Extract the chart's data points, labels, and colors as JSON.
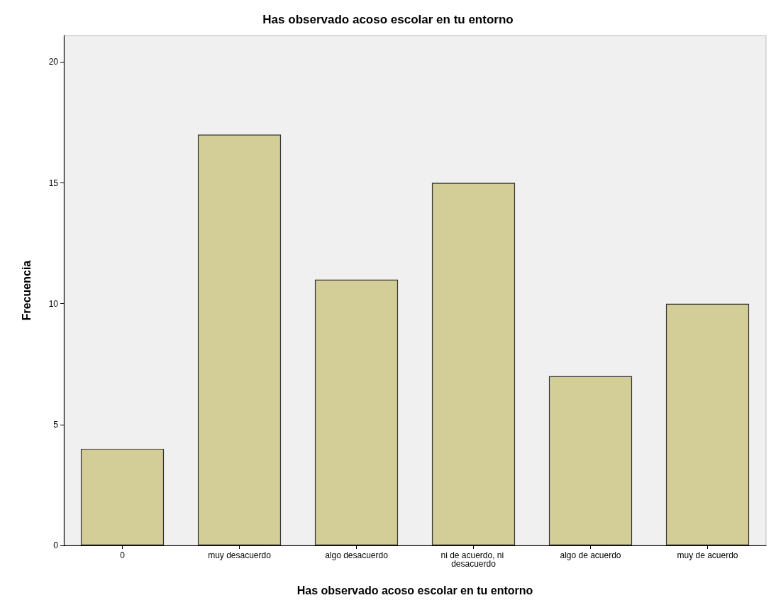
{
  "chart_data": {
    "type": "bar",
    "title": "Has observado acoso escolar en tu entorno",
    "xlabel": "Has observado acoso escolar en tu entorno",
    "ylabel": "Frecuencia",
    "categories": [
      "0",
      "muy desacuerdo",
      "algo desacuerdo",
      "ni de acuerdo, ni desacuerdo",
      "algo de acuerdo",
      "muy de acuerdo"
    ],
    "values": [
      4,
      17,
      11,
      15,
      7,
      10
    ],
    "color": "#d3ce97",
    "ylim": [
      0,
      21.1
    ],
    "yticks": [
      0,
      5,
      10,
      15,
      20
    ],
    "grid": false
  }
}
